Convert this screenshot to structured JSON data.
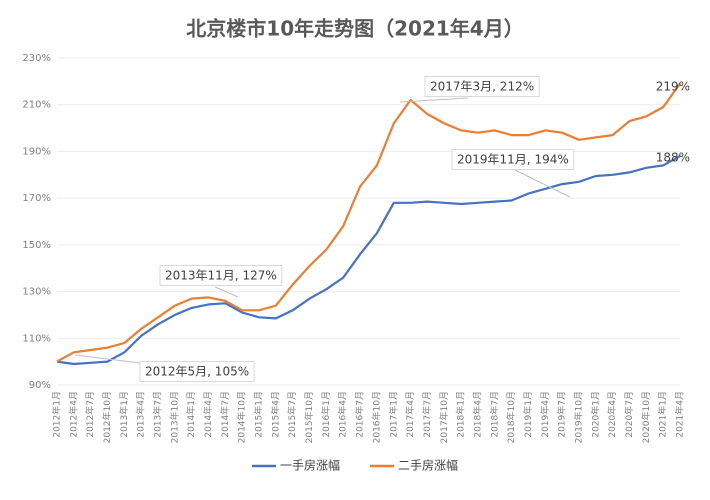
{
  "chart_data": {
    "type": "line",
    "title": "北京楼市10年走势图（2021年4月）",
    "categories": [
      "2012年1月",
      "2012年4月",
      "2012年7月",
      "2012年10月",
      "2013年1月",
      "2013年4月",
      "2013年7月",
      "2013年10月",
      "2014年1月",
      "2014年4月",
      "2014年7月",
      "2014年10月",
      "2015年1月",
      "2015年4月",
      "2015年7月",
      "2015年10月",
      "2016年1月",
      "2016年4月",
      "2016年7月",
      "2016年10月",
      "2017年1月",
      "2017年4月",
      "2017年7月",
      "2017年10月",
      "2018年1月",
      "2018年4月",
      "2018年7月",
      "2018年10月",
      "2019年1月",
      "2019年4月",
      "2019年7月",
      "2019年10月",
      "2020年1月",
      "2020年4月",
      "2020年7月",
      "2020年10月",
      "2021年1月",
      "2021年4月"
    ],
    "series": [
      {
        "name": "一手房涨幅",
        "color": "#4472c4",
        "values": [
          100,
          99,
          99.5,
          100,
          104,
          111,
          116,
          120,
          123,
          124.5,
          125,
          121,
          119,
          118.5,
          122,
          127,
          131,
          136,
          146,
          155,
          168,
          168,
          168.5,
          168,
          167.5,
          168,
          168.5,
          169,
          172,
          174,
          176,
          177,
          179.5,
          180,
          181,
          183,
          184,
          188
        ]
      },
      {
        "name": "二手房涨幅",
        "color": "#ed7d31",
        "values": [
          100,
          104,
          105,
          106,
          108,
          114,
          119,
          124,
          127,
          127.5,
          126,
          122,
          122,
          124,
          133,
          141,
          148,
          158,
          175,
          184,
          202,
          212,
          206,
          202,
          199,
          198,
          199,
          197,
          197,
          199,
          198,
          195,
          196,
          197,
          203,
          205,
          209,
          219
        ]
      }
    ],
    "annotations": [
      "2017年3月, 212%",
      "219%",
      "2019年11月, 194%",
      "188%",
      "2013年11月, 127%",
      "2012年5月, 105%"
    ],
    "ylim": [
      90,
      230
    ],
    "yticks": [
      {
        "value": 90,
        "label": "90%"
      },
      {
        "value": 110,
        "label": "110%"
      },
      {
        "value": 130,
        "label": "130%"
      },
      {
        "value": 150,
        "label": "150%"
      },
      {
        "value": 170,
        "label": "170%"
      },
      {
        "value": 190,
        "label": "190%"
      },
      {
        "value": 210,
        "label": "210%"
      },
      {
        "value": 230,
        "label": "230%"
      }
    ],
    "grid": true,
    "legend": "bottom"
  }
}
